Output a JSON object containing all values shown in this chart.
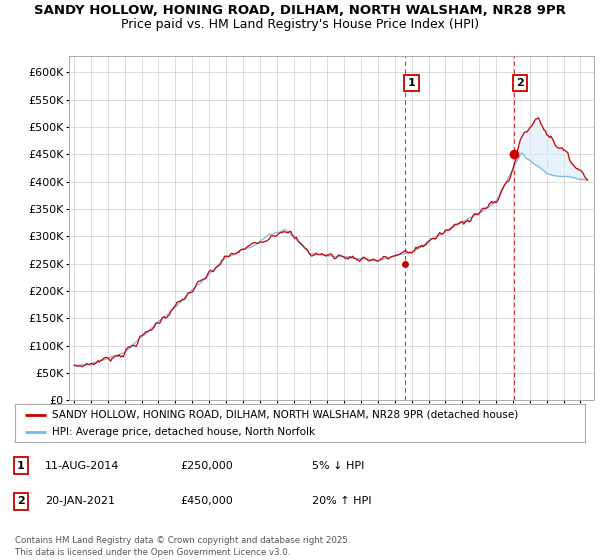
{
  "title1": "SANDY HOLLOW, HONING ROAD, DILHAM, NORTH WALSHAM, NR28 9PR",
  "title2": "Price paid vs. HM Land Registry's House Price Index (HPI)",
  "ylabel_ticks": [
    "£0",
    "£50K",
    "£100K",
    "£150K",
    "£200K",
    "£250K",
    "£300K",
    "£350K",
    "£400K",
    "£450K",
    "£500K",
    "£550K",
    "£600K"
  ],
  "ytick_values": [
    0,
    50000,
    100000,
    150000,
    200000,
    250000,
    300000,
    350000,
    400000,
    450000,
    500000,
    550000,
    600000
  ],
  "ylim": [
    0,
    630000
  ],
  "xlim_start": 1994.7,
  "xlim_end": 2025.8,
  "hpi_color": "#7ab8e8",
  "hpi_fill_color": "#daeaf8",
  "price_color": "#cc0000",
  "marker1_x": 2014.61,
  "marker1_y": 250000,
  "marker1_label": "1",
  "marker2_x": 2021.05,
  "marker2_y": 450000,
  "marker2_label": "2",
  "legend_line1": "SANDY HOLLOW, HONING ROAD, DILHAM, NORTH WALSHAM, NR28 9PR (detached house)",
  "legend_line2": "HPI: Average price, detached house, North Norfolk",
  "annotation1_num": "1",
  "annotation1_date": "11-AUG-2014",
  "annotation1_price": "£250,000",
  "annotation1_pct": "5% ↓ HPI",
  "annotation2_num": "2",
  "annotation2_date": "20-JAN-2021",
  "annotation2_price": "£450,000",
  "annotation2_pct": "20% ↑ HPI",
  "footer": "Contains HM Land Registry data © Crown copyright and database right 2025.\nThis data is licensed under the Open Government Licence v3.0.",
  "bg_color": "#ffffff",
  "grid_color": "#cccccc",
  "title_fontsize": 9.5,
  "subtitle_fontsize": 9.0,
  "tick_fontsize": 8.0
}
